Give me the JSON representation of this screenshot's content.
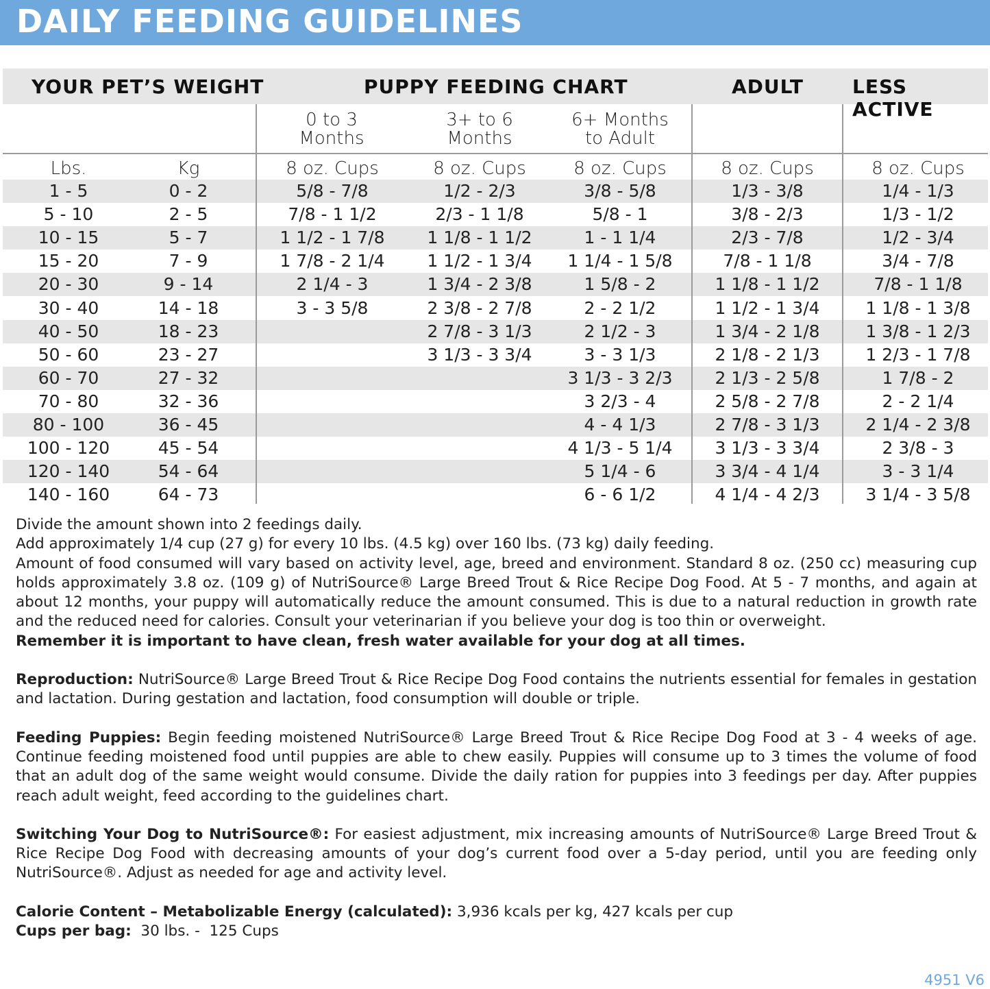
{
  "title": "DAILY FEEDING GUIDELINES",
  "headers": {
    "weight": "YOUR PET’S WEIGHT",
    "puppy": "PUPPY FEEDING CHART",
    "adult": "ADULT",
    "less_active": "LESS ACTIVE"
  },
  "subheaders": {
    "p1": "0 to 3\nMonths",
    "p2": "3+ to 6\nMonths",
    "p3": "6+ Months\nto Adult"
  },
  "units": [
    "Lbs.",
    "Kg",
    "8 oz. Cups",
    "8 oz. Cups",
    "8 oz. Cups",
    "8 oz. Cups",
    "8 oz. Cups"
  ],
  "rows": [
    [
      "1 - 5",
      "0 - 2",
      "5/8 - 7/8",
      "1/2 - 2/3",
      "3/8 - 5/8",
      "1/3 - 3/8",
      "1/4 - 1/3"
    ],
    [
      "5 - 10",
      "2 - 5",
      "7/8 - 1 1/2",
      "2/3 - 1 1/8",
      "5/8 - 1",
      "3/8 - 2/3",
      "1/3 - 1/2"
    ],
    [
      "10 - 15",
      "5 - 7",
      "1 1/2 - 1 7/8",
      "1 1/8 - 1 1/2",
      "1 - 1 1/4",
      "2/3 - 7/8",
      "1/2 - 3/4"
    ],
    [
      "15 - 20",
      "7 - 9",
      "1 7/8 - 2 1/4",
      "1 1/2 - 1 3/4",
      "1 1/4 - 1 5/8",
      "7/8 - 1 1/8",
      "3/4 - 7/8"
    ],
    [
      "20 - 30",
      "9 - 14",
      "2 1/4 - 3",
      "1 3/4 - 2 3/8",
      "1 5/8 - 2",
      "1 1/8 - 1 1/2",
      "7/8 - 1 1/8"
    ],
    [
      "30 - 40",
      "14 - 18",
      "3 - 3 5/8",
      "2 3/8 - 2 7/8",
      "2 - 2 1/2",
      "1 1/2 - 1 3/4",
      "1 1/8 - 1 3/8"
    ],
    [
      "40 - 50",
      "18 - 23",
      "",
      "2 7/8 - 3 1/3",
      "2 1/2 - 3",
      "1 3/4 - 2 1/8",
      "1 3/8 - 1 2/3"
    ],
    [
      "50 - 60",
      "23 - 27",
      "",
      "3 1/3 - 3 3/4",
      "3 - 3 1/3",
      "2 1/8 - 2 1/3",
      "1 2/3 - 1 7/8"
    ],
    [
      "60 - 70",
      "27 - 32",
      "",
      "",
      "3 1/3 - 3 2/3",
      "2 1/3 - 2 5/8",
      "1 7/8 - 2"
    ],
    [
      "70 - 80",
      "32 - 36",
      "",
      "",
      "3 2/3 - 4",
      "2 5/8 - 2 7/8",
      "2 - 2 1/4"
    ],
    [
      "80 - 100",
      "36 - 45",
      "",
      "",
      "4 - 4 1/3",
      "2 7/8 - 3 1/3",
      "2 1/4 - 2 3/8"
    ],
    [
      "100 - 120",
      "45 - 54",
      "",
      "",
      "4 1/3 - 5 1/4",
      "3 1/3 - 3 3/4",
      "2 3/8 - 3"
    ],
    [
      "120 - 140",
      "54 - 64",
      "",
      "",
      "5 1/4 - 6",
      "3 3/4 - 4 1/4",
      "3 - 3 1/4"
    ],
    [
      "140 - 160",
      "64 - 73",
      "",
      "",
      "6 - 6 1/2",
      "4 1/4 - 4 2/3",
      "3 1/4 - 3 5/8"
    ]
  ],
  "notes": {
    "line1": "Divide the amount shown into 2 feedings daily.",
    "line2": "Add approximately 1/4 cup (27 g) for every 10 lbs. (4.5 kg) over 160 lbs. (73 kg) daily feeding.",
    "line3": "Amount of food consumed will vary based on activity level, age, breed and environment. Standard 8 oz. (250 cc) measuring cup holds approximately 3.8 oz. (109 g) of NutriSource® Large Breed Trout & Rice Recipe Dog Food. At 5 - 7 months, and again at about 12 months, your puppy will automatically reduce the amount consumed. This is due to a natural reduction in growth rate and the reduced need for calories. Consult your veterinarian if you believe your dog is too thin or overweight.",
    "water": "Remember it is important to have clean, fresh water available for your dog at all times.",
    "repro_label": "Reproduction:",
    "repro": " NutriSource® Large Breed Trout & Rice Recipe Dog Food contains the nutrients essential for females in gestation and lactation. During gestation and lactation, food consumption will double or triple.",
    "puppies_label": "Feeding Puppies:",
    "puppies": " Begin feeding moistened NutriSource® Large Breed Trout & Rice Recipe Dog Food at 3 - 4 weeks of age. Continue feeding moistened food until puppies are able to chew easily. Puppies will consume up to 3 times the volume of food that an adult dog of the same weight would consume. Divide the daily ration for puppies into 3 feedings per day. After puppies reach adult weight, feed according to the guidelines chart.",
    "switch_label": "Switching Your Dog to NutriSource®:",
    "switch": " For easiest adjustment, mix increasing amounts of NutriSource® Large Breed Trout & Rice Recipe Dog Food with decreasing amounts of your dog’s current food over a 5-day period, until you are feeding only NutriSource®. Adjust as needed for age and activity level.",
    "calorie_label": "Calorie Content – Metabolizable Energy (calculated):",
    "calorie": " 3,936 kcals per kg, 427 kcals per cup",
    "cups_label": "Cups per bag:",
    "cups": "  30 lbs. -  125 Cups"
  },
  "code": "4951 V6",
  "colors": {
    "banner": "#6fa8dc",
    "row_shade": "#e6e6e6"
  }
}
